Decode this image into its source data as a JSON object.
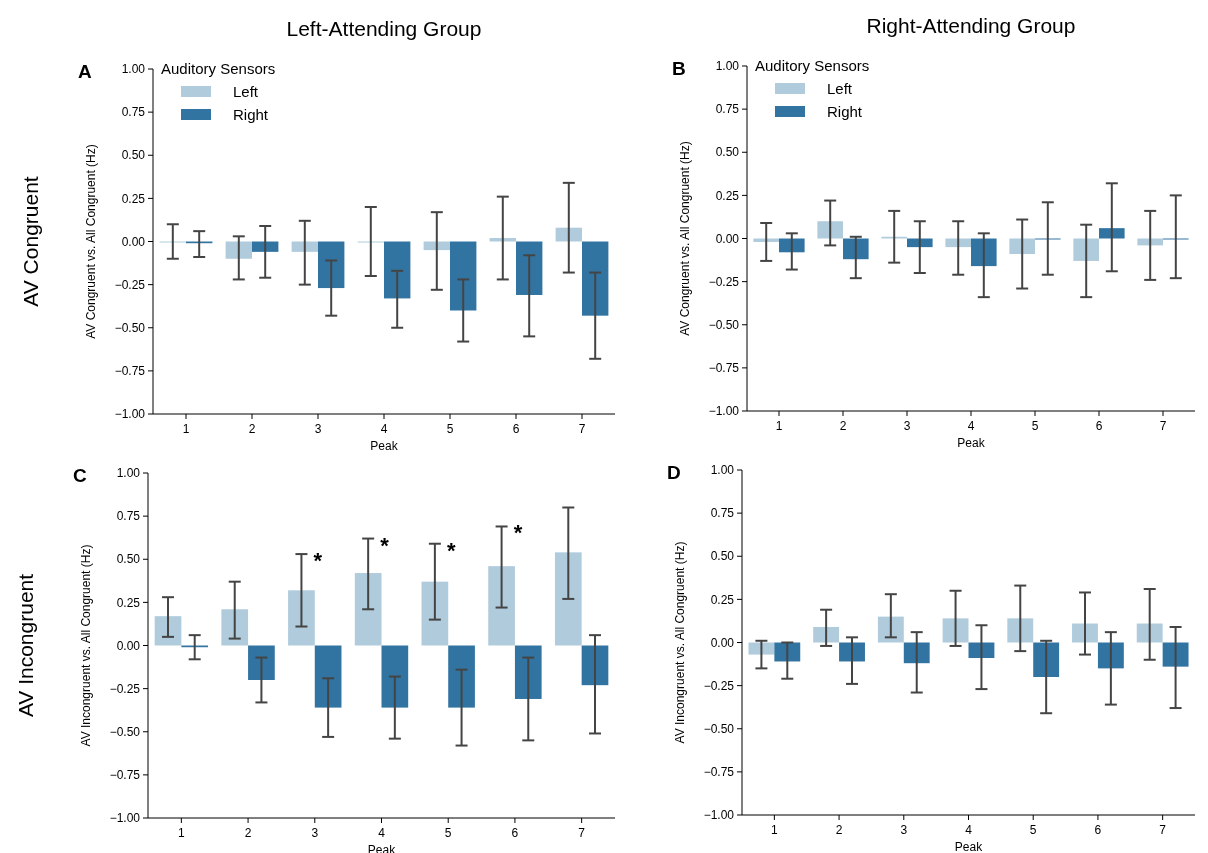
{
  "chart_data": [
    {
      "type": "bar",
      "title": "Left-Attending Group",
      "annotations": [
        "A",
        "AV Congruent"
      ],
      "xlabel": "Peak",
      "ylabel": "AV Congruent vs. All Congruent (Hz)",
      "legend_title": "Auditory Sensors",
      "legend": "top left",
      "categories": [
        "1",
        "2",
        "3",
        "4",
        "5",
        "6",
        "7"
      ],
      "ylim": [
        -1,
        1
      ],
      "yticks": [
        {
          "value": -1,
          "label": "−1.00"
        },
        {
          "value": -0.75,
          "label": "−0.75"
        },
        {
          "value": -0.5,
          "label": "−0.50"
        },
        {
          "value": -0.25,
          "label": "−0.25"
        },
        {
          "value": 0,
          "label": "0.00"
        },
        {
          "value": 0.25,
          "label": "0.25"
        },
        {
          "value": 0.5,
          "label": "0.50"
        },
        {
          "value": 0.75,
          "label": "0.75"
        },
        {
          "value": 1,
          "label": "1.00"
        }
      ],
      "series": [
        {
          "name": "Left",
          "color": "#afcbdc",
          "values": [
            0,
            -0.1,
            -0.06,
            0,
            -0.05,
            0.02,
            0.08
          ],
          "errors": [
            [
              -0.1,
              0.1
            ],
            [
              -0.22,
              0.03
            ],
            [
              -0.25,
              0.12
            ],
            [
              -0.2,
              0.2
            ],
            [
              -0.28,
              0.17
            ],
            [
              -0.22,
              0.26
            ],
            [
              -0.18,
              0.34
            ]
          ]
        },
        {
          "name": "Right",
          "color": "#3274a1",
          "values": [
            -0.01,
            -0.06,
            -0.27,
            -0.33,
            -0.4,
            -0.31,
            -0.43
          ],
          "errors": [
            [
              -0.09,
              0.06
            ],
            [
              -0.21,
              0.09
            ],
            [
              -0.43,
              -0.11
            ],
            [
              -0.5,
              -0.17
            ],
            [
              -0.58,
              -0.22
            ],
            [
              -0.55,
              -0.08
            ],
            [
              -0.68,
              -0.18
            ]
          ]
        }
      ]
    },
    {
      "type": "bar",
      "title": "Right-Attending Group",
      "annotations": [
        "B"
      ],
      "xlabel": "Peak",
      "ylabel": "AV Congruent vs. All Congruent (Hz)",
      "legend_title": "Auditory Sensors",
      "legend": "top left",
      "categories": [
        "1",
        "2",
        "3",
        "4",
        "5",
        "6",
        "7"
      ],
      "ylim": [
        -1,
        1
      ],
      "yticks": [
        {
          "value": -1,
          "label": "−1.00"
        },
        {
          "value": -0.75,
          "label": "−0.75"
        },
        {
          "value": -0.5,
          "label": "−0.50"
        },
        {
          "value": -0.25,
          "label": "−0.25"
        },
        {
          "value": 0,
          "label": "0.00"
        },
        {
          "value": 0.25,
          "label": "0.25"
        },
        {
          "value": 0.5,
          "label": "0.50"
        },
        {
          "value": 0.75,
          "label": "0.75"
        },
        {
          "value": 1,
          "label": "1.00"
        }
      ],
      "series": [
        {
          "name": "Left",
          "color": "#afcbdc",
          "values": [
            -0.02,
            0.1,
            0.01,
            -0.05,
            -0.09,
            -0.13,
            -0.04
          ],
          "errors": [
            [
              -0.13,
              0.09
            ],
            [
              -0.04,
              0.22
            ],
            [
              -0.14,
              0.16
            ],
            [
              -0.21,
              0.1
            ],
            [
              -0.29,
              0.11
            ],
            [
              -0.34,
              0.08
            ],
            [
              -0.24,
              0.16
            ]
          ]
        },
        {
          "name": "Right",
          "color": "#3274a1",
          "values": [
            -0.08,
            -0.12,
            -0.05,
            -0.16,
            0,
            0.06,
            0
          ],
          "errors": [
            [
              -0.18,
              0.03
            ],
            [
              -0.23,
              0.01
            ],
            [
              -0.2,
              0.1
            ],
            [
              -0.34,
              0.03
            ],
            [
              -0.21,
              0.21
            ],
            [
              -0.19,
              0.32
            ],
            [
              -0.23,
              0.25
            ]
          ]
        }
      ]
    },
    {
      "type": "bar",
      "annotations": [
        "C",
        "AV Incongruent",
        "*",
        "*",
        "*",
        "*"
      ],
      "xlabel": "Peak",
      "ylabel": "AV Incongruent vs. All Congruent (Hz)",
      "categories": [
        "1",
        "2",
        "3",
        "4",
        "5",
        "6",
        "7"
      ],
      "ylim": [
        -1,
        1
      ],
      "yticks": [
        {
          "value": -1,
          "label": "−1.00"
        },
        {
          "value": -0.75,
          "label": "−0.75"
        },
        {
          "value": -0.5,
          "label": "−0.50"
        },
        {
          "value": -0.25,
          "label": "−0.25"
        },
        {
          "value": 0,
          "label": "0.00"
        },
        {
          "value": 0.25,
          "label": "0.25"
        },
        {
          "value": 0.5,
          "label": "0.50"
        },
        {
          "value": 0.75,
          "label": "0.75"
        },
        {
          "value": 1,
          "label": "1.00"
        }
      ],
      "series": [
        {
          "color": "#afcbdc",
          "values": [
            0.17,
            0.21,
            0.32,
            0.42,
            0.37,
            0.46,
            0.54
          ],
          "errors": [
            [
              0.05,
              0.28
            ],
            [
              0.04,
              0.37
            ],
            [
              0.11,
              0.53
            ],
            [
              0.21,
              0.62
            ],
            [
              0.15,
              0.59
            ],
            [
              0.22,
              0.69
            ],
            [
              0.27,
              0.8
            ]
          ]
        },
        {
          "color": "#3274a1",
          "values": [
            -0.01,
            -0.2,
            -0.36,
            -0.36,
            -0.36,
            -0.31,
            -0.23
          ],
          "errors": [
            [
              -0.08,
              0.06
            ],
            [
              -0.33,
              -0.07
            ],
            [
              -0.53,
              -0.19
            ],
            [
              -0.54,
              -0.18
            ],
            [
              -0.58,
              -0.14
            ],
            [
              -0.55,
              -0.07
            ],
            [
              -0.51,
              0.06
            ]
          ]
        }
      ]
    },
    {
      "type": "bar",
      "annotations": [
        "D"
      ],
      "xlabel": "Peak",
      "ylabel": "AV Incongruent vs. All Congruent (Hz)",
      "categories": [
        "1",
        "2",
        "3",
        "4",
        "5",
        "6",
        "7"
      ],
      "ylim": [
        -1,
        1
      ],
      "yticks": [
        {
          "value": -1,
          "label": "−1.00"
        },
        {
          "value": -0.75,
          "label": "−0.75"
        },
        {
          "value": -0.5,
          "label": "−0.50"
        },
        {
          "value": -0.25,
          "label": "−0.25"
        },
        {
          "value": 0,
          "label": "0.00"
        },
        {
          "value": 0.25,
          "label": "0.25"
        },
        {
          "value": 0.5,
          "label": "0.50"
        },
        {
          "value": 0.75,
          "label": "0.75"
        },
        {
          "value": 1,
          "label": "1.00"
        }
      ],
      "series": [
        {
          "color": "#afcbdc",
          "values": [
            -0.07,
            0.09,
            0.15,
            0.14,
            0.14,
            0.11,
            0.11
          ],
          "errors": [
            [
              -0.15,
              0.01
            ],
            [
              -0.02,
              0.19
            ],
            [
              0.03,
              0.28
            ],
            [
              -0.02,
              0.3
            ],
            [
              -0.05,
              0.33
            ],
            [
              -0.07,
              0.29
            ],
            [
              -0.1,
              0.31
            ]
          ]
        },
        {
          "color": "#3274a1",
          "values": [
            -0.11,
            -0.11,
            -0.12,
            -0.09,
            -0.2,
            -0.15,
            -0.14
          ],
          "errors": [
            [
              -0.21,
              0
            ],
            [
              -0.24,
              0.03
            ],
            [
              -0.29,
              0.06
            ],
            [
              -0.27,
              0.1
            ],
            [
              -0.41,
              0.01
            ],
            [
              -0.36,
              0.06
            ],
            [
              -0.38,
              0.09
            ]
          ]
        }
      ]
    }
  ]
}
